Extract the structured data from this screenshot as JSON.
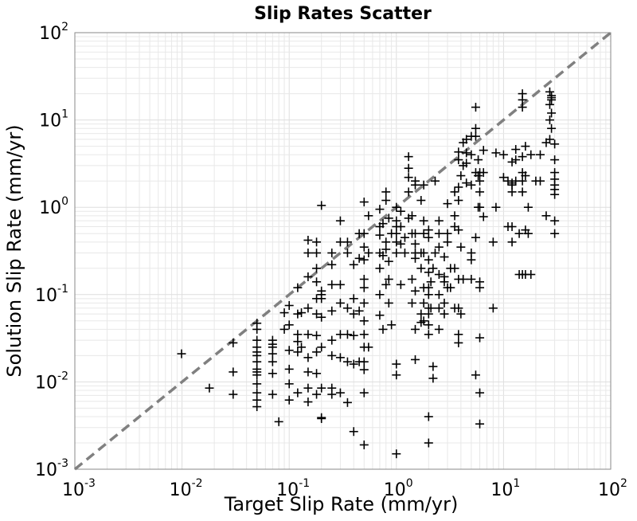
{
  "chart_data": {
    "type": "scatter",
    "title": "Slip Rates Scatter",
    "xlabel": "Target Slip Rate (mm/yr)",
    "ylabel": "Solution Slip Rate (mm/yr)",
    "xscale": "log",
    "yscale": "log",
    "xlim": [
      0.001,
      100
    ],
    "ylim": [
      0.001,
      100
    ],
    "grid": true,
    "legend": "none",
    "marker": "plus",
    "x_ticks": [
      {
        "base": "10",
        "exp": "-3"
      },
      {
        "base": "10",
        "exp": "-2"
      },
      {
        "base": "10",
        "exp": "-1"
      },
      {
        "base": "10",
        "exp": "0"
      },
      {
        "base": "10",
        "exp": "1"
      },
      {
        "base": "10",
        "exp": "2"
      }
    ],
    "y_ticks": [
      {
        "base": "10",
        "exp": "-3"
      },
      {
        "base": "10",
        "exp": "-2"
      },
      {
        "base": "10",
        "exp": "-1"
      },
      {
        "base": "10",
        "exp": "0"
      },
      {
        "base": "10",
        "exp": "1"
      },
      {
        "base": "10",
        "exp": "2"
      }
    ],
    "reference_line": {
      "x": [
        0.001,
        100
      ],
      "y": [
        0.001,
        100
      ],
      "style": "dashed",
      "color": "#808080"
    },
    "colors": {
      "points": "#000000",
      "grid": "#e8e8e8",
      "reference": "#808080"
    },
    "x": [
      0.0099,
      0.018,
      0.03,
      0.03,
      0.03,
      0.05,
      0.05,
      0.05,
      0.05,
      0.05,
      0.05,
      0.05,
      0.05,
      0.05,
      0.05,
      0.05,
      0.05,
      0.05,
      0.05,
      0.07,
      0.07,
      0.07,
      0.07,
      0.07,
      0.07,
      0.07,
      0.08,
      0.09,
      0.09,
      0.1,
      0.1,
      0.1,
      0.1,
      0.1,
      0.1,
      0.12,
      0.12,
      0.12,
      0.12,
      0.12,
      0.12,
      0.13,
      0.13,
      0.15,
      0.15,
      0.15,
      0.15,
      0.15,
      0.15,
      0.15,
      0.15,
      0.15,
      0.18,
      0.18,
      0.18,
      0.18,
      0.18,
      0.18,
      0.18,
      0.18,
      0.18,
      0.18,
      0.2,
      0.2,
      0.2,
      0.2,
      0.2,
      0.2,
      0.2,
      0.2,
      0.2,
      0.25,
      0.25,
      0.25,
      0.25,
      0.25,
      0.25,
      0.25,
      0.25,
      0.3,
      0.3,
      0.3,
      0.3,
      0.3,
      0.3,
      0.3,
      0.35,
      0.35,
      0.35,
      0.35,
      0.35,
      0.35,
      0.4,
      0.4,
      0.4,
      0.4,
      0.4,
      0.4,
      0.45,
      0.45,
      0.45,
      0.45,
      0.5,
      0.5,
      0.5,
      0.5,
      0.5,
      0.5,
      0.5,
      0.5,
      0.5,
      0.5,
      0.5,
      0.5,
      0.5,
      0.5,
      0.55,
      0.55,
      0.55,
      0.7,
      0.7,
      0.7,
      0.7,
      0.7,
      0.7,
      0.7,
      0.75,
      0.75,
      0.75,
      0.8,
      0.8,
      0.8,
      0.8,
      0.8,
      0.85,
      0.85,
      0.85,
      0.85,
      0.9,
      0.9,
      1.0,
      1.0,
      1.0,
      1.0,
      1.0,
      1.0,
      1.0,
      1.0,
      1.0,
      1.1,
      1.1,
      1.1,
      1.1,
      1.2,
      1.2,
      1.3,
      1.3,
      1.3,
      1.3,
      1.3,
      1.4,
      1.4,
      1.4,
      1.4,
      1.5,
      1.5,
      1.5,
      1.5,
      1.5,
      1.5,
      1.5,
      1.5,
      1.5,
      1.7,
      1.7,
      1.7,
      1.7,
      1.7,
      1.8,
      1.8,
      1.8,
      1.8,
      1.8,
      1.8,
      1.8,
      2.0,
      2.0,
      2.0,
      2.0,
      2.0,
      2.0,
      2.0,
      2.0,
      2.0,
      2.0,
      2.0,
      2.0,
      2.1,
      2.1,
      2.2,
      2.2,
      2.2,
      2.3,
      2.3,
      2.5,
      2.5,
      2.5,
      2.5,
      2.5,
      2.5,
      2.5,
      2.8,
      2.8,
      2.8,
      2.8,
      2.8,
      3.0,
      3.0,
      3.0,
      3.0,
      3.2,
      3.2,
      3.5,
      3.5,
      3.5,
      3.5,
      3.5,
      3.8,
      3.8,
      3.8,
      3.8,
      3.8,
      3.8,
      3.8,
      3.8,
      3.8,
      4.0,
      4.0,
      4.0,
      4.2,
      4.2,
      4.2,
      4.5,
      4.5,
      4.5,
      4.5,
      5.0,
      5.0,
      5.0,
      5.0,
      5.0,
      5.0,
      5.5,
      5.5,
      5.5,
      5.5,
      5.5,
      5.5,
      5.8,
      5.8,
      5.8,
      6.0,
      6.0,
      6.0,
      6.0,
      6.0,
      6.0,
      6.0,
      6.0,
      6.0,
      6.5,
      6.5,
      6.5,
      8.0,
      8.0,
      8.5,
      8.5,
      10.0,
      10.0,
      11.0,
      11.0,
      12.0,
      12.0,
      12.0,
      12.0,
      12.0,
      12.0,
      13.0,
      13.0,
      13.0,
      14.0,
      14.0,
      15.0,
      15.0,
      15.0,
      15.0,
      15.0,
      15.0,
      15.0,
      15.0,
      16.0,
      16.0,
      16.0,
      16.0,
      17.0,
      17.0,
      18.0,
      18.0,
      20.0,
      22.0,
      22.0,
      25.0,
      25.0,
      27.0,
      27.0,
      27.0,
      27.0,
      28.0,
      28.0,
      28.0,
      28.0,
      28.0,
      30.0,
      30.0,
      30.0,
      30.0,
      30.0,
      30.0,
      30.0,
      30.0,
      30.0
    ],
    "y": [
      0.021,
      0.0085,
      0.028,
      0.013,
      0.0072,
      0.047,
      0.04,
      0.03,
      0.025,
      0.022,
      0.02,
      0.017,
      0.014,
      0.013,
      0.012,
      0.0095,
      0.0075,
      0.0062,
      0.0052,
      0.03,
      0.027,
      0.025,
      0.021,
      0.017,
      0.0125,
      0.0072,
      0.0035,
      0.062,
      0.04,
      0.075,
      0.045,
      0.023,
      0.014,
      0.0095,
      0.0062,
      0.12,
      0.06,
      0.035,
      0.029,
      0.022,
      0.0075,
      0.062,
      0.025,
      0.42,
      0.3,
      0.16,
      0.07,
      0.035,
      0.019,
      0.013,
      0.0085,
      0.0059,
      0.4,
      0.3,
      0.2,
      0.14,
      0.09,
      0.06,
      0.034,
      0.022,
      0.0125,
      0.0072,
      1.05,
      0.11,
      0.1,
      0.09,
      0.055,
      0.025,
      0.0085,
      0.0039,
      0.0038,
      0.3,
      0.22,
      0.13,
      0.065,
      0.03,
      0.02,
      0.0085,
      0.0072,
      0.7,
      0.4,
      0.13,
      0.08,
      0.035,
      0.019,
      0.0075,
      0.4,
      0.3,
      0.07,
      0.035,
      0.017,
      0.0058,
      0.22,
      0.09,
      0.06,
      0.034,
      0.016,
      0.0027,
      0.5,
      0.26,
      0.065,
      0.017,
      1.15,
      0.5,
      0.35,
      0.25,
      0.15,
      0.12,
      0.08,
      0.05,
      0.035,
      0.025,
      0.017,
      0.0138,
      0.0075,
      0.0019,
      0.8,
      0.3,
      0.025,
      0.95,
      0.6,
      0.48,
      0.3,
      0.2,
      0.1,
      0.058,
      0.65,
      0.28,
      0.04,
      1.5,
      1.2,
      0.4,
      0.33,
      0.13,
      0.75,
      0.24,
      0.15,
      0.08,
      0.5,
      0.045,
      1.0,
      0.7,
      0.6,
      0.5,
      0.4,
      0.3,
      0.016,
      0.012,
      0.0015,
      0.9,
      0.6,
      0.38,
      0.13,
      0.45,
      0.3,
      3.8,
      2.8,
      2.2,
      1.5,
      0.75,
      0.8,
      0.5,
      0.15,
      0.08,
      2.0,
      1.8,
      0.5,
      0.38,
      0.3,
      0.26,
      0.11,
      0.04,
      0.018,
      1.2,
      0.3,
      0.2,
      0.06,
      0.048,
      1.8,
      0.7,
      0.5,
      0.3,
      0.12,
      0.08,
      0.05,
      0.55,
      0.45,
      0.25,
      0.18,
      0.12,
      0.1,
      0.07,
      0.06,
      0.045,
      0.035,
      0.004,
      0.002,
      0.14,
      0.07,
      0.2,
      0.015,
      0.011,
      2.0,
      0.3,
      0.7,
      0.5,
      0.35,
      0.17,
      0.1,
      0.07,
      0.04,
      0.27,
      0.16,
      0.14,
      0.08,
      0.06,
      1.1,
      0.5,
      0.4,
      0.12,
      0.2,
      0.12,
      1.5,
      0.8,
      0.6,
      0.2,
      0.07,
      4.3,
      3.5,
      1.7,
      1.2,
      0.55,
      0.15,
      0.07,
      0.035,
      0.028,
      2.3,
      0.35,
      0.06,
      5.5,
      3.0,
      0.15,
      6.0,
      4.2,
      3.2,
      1.9,
      6.5,
      4.0,
      1.8,
      0.3,
      0.25,
      0.15,
      14.0,
      8.0,
      6.5,
      2.5,
      0.45,
      0.012,
      3.5,
      2.3,
      1.0,
      2.5,
      2.0,
      1.5,
      1.0,
      0.14,
      0.12,
      0.032,
      0.0075,
      0.0033,
      4.5,
      2.5,
      0.78,
      0.4,
      0.07,
      4.2,
      1.0,
      4.0,
      2.2,
      2.0,
      0.6,
      3.3,
      1.9,
      1.8,
      1.5,
      0.6,
      0.4,
      4.6,
      3.5,
      2.0,
      0.5,
      0.17,
      20.0,
      17.0,
      14.0,
      3.8,
      2.5,
      2.0,
      1.5,
      0.17,
      5.0,
      2.3,
      0.55,
      0.17,
      1.0,
      0.5,
      4.0,
      0.17,
      2.0,
      4.0,
      2.0,
      5.5,
      0.8,
      21.0,
      15.0,
      10.0,
      6.0,
      19.0,
      18.0,
      17.0,
      12.0,
      8.0,
      5.3,
      3.5,
      2.5,
      2.1,
      1.8,
      1.6,
      1.4,
      0.7,
      0.5
    ]
  }
}
